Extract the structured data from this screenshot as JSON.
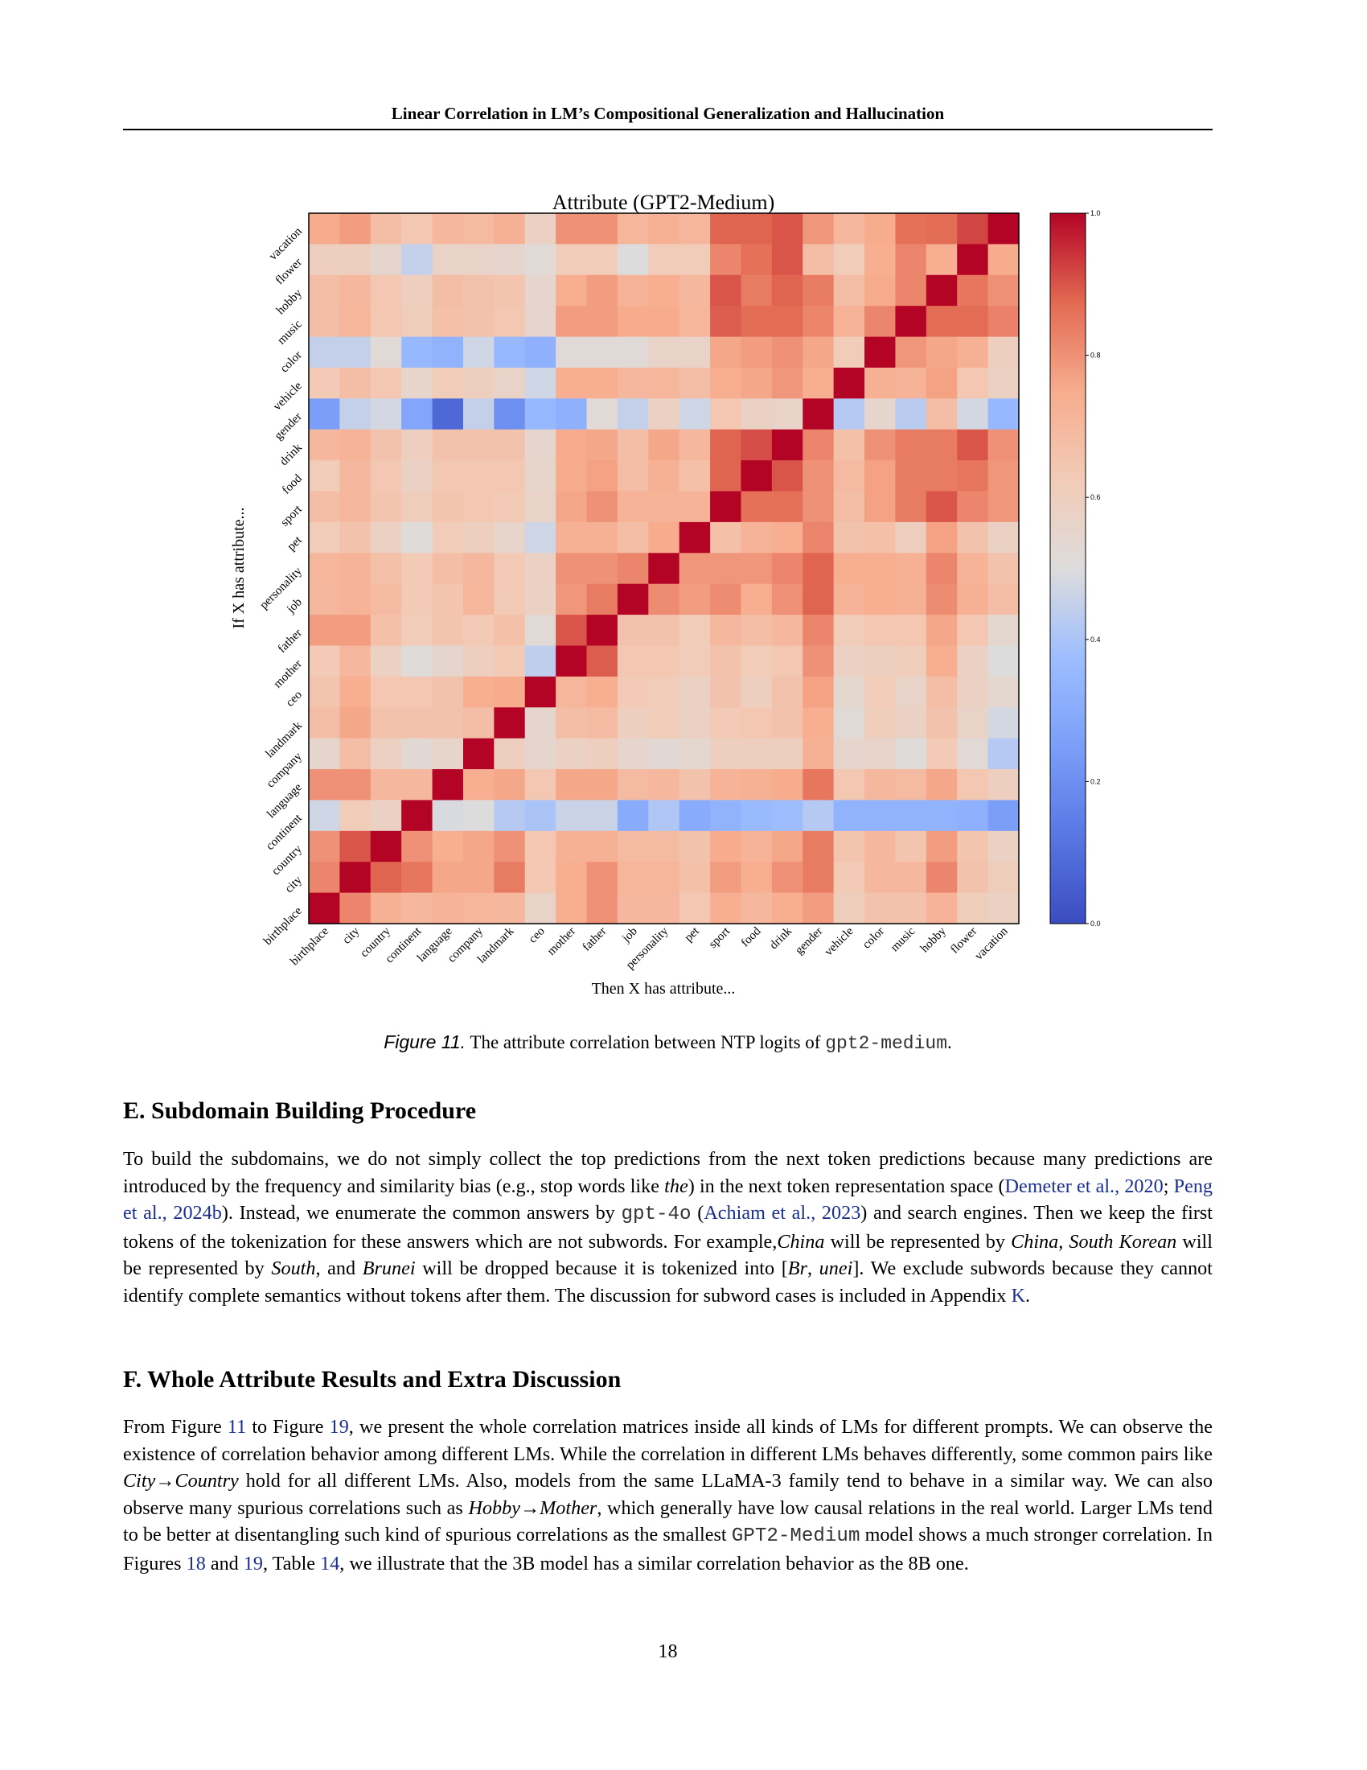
{
  "header": {
    "running_title": "Linear Correlation in LM’s Compositional Generalization and Hallucination"
  },
  "chart_data": {
    "type": "heatmap",
    "title": "Attribute (GPT2-Medium)",
    "xlabel": "Then X has attribute...",
    "ylabel": "If X has attribute...",
    "colormap": "coolwarm",
    "vmin": 0.0,
    "vmax": 1.0,
    "colorbar_ticks": [
      "0.0",
      "0.2",
      "0.4",
      "0.6",
      "0.8",
      "1.0"
    ],
    "x_labels": [
      "birthplace",
      "city",
      "country",
      "continent",
      "language",
      "company",
      "landmark",
      "ceo",
      "mother",
      "father",
      "job",
      "personality",
      "pet",
      "sport",
      "food",
      "drink",
      "gender",
      "vehicle",
      "color",
      "music",
      "hobby",
      "flower",
      "vacation"
    ],
    "y_labels_top_to_bottom": [
      "vacation",
      "flower",
      "hobby",
      "music",
      "color",
      "vehicle",
      "gender",
      "drink",
      "food",
      "sport",
      "pet",
      "personality",
      "job",
      "father",
      "mother",
      "ceo",
      "landmark",
      "company",
      "language",
      "continent",
      "country",
      "city",
      "birthplace"
    ],
    "matrix_top_to_bottom": [
      [
        0.75,
        0.78,
        0.68,
        0.64,
        0.7,
        0.69,
        0.73,
        0.58,
        0.8,
        0.8,
        0.71,
        0.73,
        0.71,
        0.88,
        0.88,
        0.9,
        0.79,
        0.7,
        0.75,
        0.86,
        0.87,
        0.92,
        1.0
      ],
      [
        0.6,
        0.6,
        0.55,
        0.45,
        0.57,
        0.57,
        0.55,
        0.52,
        0.62,
        0.62,
        0.5,
        0.62,
        0.62,
        0.82,
        0.86,
        0.9,
        0.68,
        0.62,
        0.74,
        0.82,
        0.74,
        1.0,
        0.75
      ],
      [
        0.68,
        0.7,
        0.64,
        0.6,
        0.68,
        0.66,
        0.65,
        0.55,
        0.74,
        0.78,
        0.72,
        0.74,
        0.7,
        0.9,
        0.84,
        0.88,
        0.84,
        0.68,
        0.75,
        0.82,
        1.0,
        0.85,
        0.8
      ],
      [
        0.68,
        0.71,
        0.64,
        0.61,
        0.67,
        0.66,
        0.64,
        0.55,
        0.78,
        0.78,
        0.75,
        0.75,
        0.71,
        0.89,
        0.87,
        0.87,
        0.82,
        0.72,
        0.82,
        1.0,
        0.87,
        0.87,
        0.83
      ],
      [
        0.45,
        0.45,
        0.52,
        0.35,
        0.33,
        0.47,
        0.35,
        0.32,
        0.52,
        0.52,
        0.52,
        0.57,
        0.57,
        0.76,
        0.78,
        0.8,
        0.76,
        0.62,
        1.0,
        0.79,
        0.76,
        0.73,
        0.6
      ],
      [
        0.63,
        0.68,
        0.64,
        0.56,
        0.62,
        0.6,
        0.57,
        0.47,
        0.74,
        0.74,
        0.7,
        0.71,
        0.68,
        0.74,
        0.76,
        0.79,
        0.74,
        1.0,
        0.73,
        0.72,
        0.77,
        0.64,
        0.58
      ],
      [
        0.25,
        0.45,
        0.48,
        0.28,
        0.08,
        0.45,
        0.2,
        0.35,
        0.32,
        0.52,
        0.45,
        0.58,
        0.47,
        0.64,
        0.58,
        0.57,
        1.0,
        0.42,
        0.55,
        0.43,
        0.68,
        0.48,
        0.35
      ],
      [
        0.7,
        0.72,
        0.66,
        0.6,
        0.66,
        0.66,
        0.66,
        0.55,
        0.75,
        0.76,
        0.68,
        0.76,
        0.7,
        0.88,
        0.91,
        1.0,
        0.82,
        0.67,
        0.8,
        0.84,
        0.84,
        0.9,
        0.8
      ],
      [
        0.62,
        0.7,
        0.64,
        0.58,
        0.64,
        0.64,
        0.64,
        0.56,
        0.75,
        0.77,
        0.68,
        0.73,
        0.67,
        0.88,
        1.0,
        0.9,
        0.8,
        0.69,
        0.77,
        0.84,
        0.84,
        0.85,
        0.79
      ],
      [
        0.68,
        0.7,
        0.65,
        0.61,
        0.65,
        0.64,
        0.63,
        0.57,
        0.76,
        0.8,
        0.72,
        0.72,
        0.72,
        1.0,
        0.86,
        0.86,
        0.8,
        0.68,
        0.77,
        0.84,
        0.9,
        0.82,
        0.79
      ],
      [
        0.62,
        0.66,
        0.59,
        0.51,
        0.62,
        0.6,
        0.56,
        0.47,
        0.73,
        0.73,
        0.68,
        0.75,
        1.0,
        0.67,
        0.72,
        0.74,
        0.82,
        0.66,
        0.67,
        0.6,
        0.77,
        0.66,
        0.58
      ],
      [
        0.71,
        0.72,
        0.67,
        0.63,
        0.68,
        0.7,
        0.63,
        0.58,
        0.8,
        0.8,
        0.82,
        1.0,
        0.79,
        0.79,
        0.79,
        0.82,
        0.88,
        0.74,
        0.74,
        0.73,
        0.82,
        0.72,
        0.66
      ],
      [
        0.7,
        0.72,
        0.69,
        0.63,
        0.65,
        0.71,
        0.63,
        0.58,
        0.79,
        0.84,
        1.0,
        0.81,
        0.78,
        0.81,
        0.74,
        0.8,
        0.88,
        0.72,
        0.74,
        0.73,
        0.81,
        0.73,
        0.68
      ],
      [
        0.78,
        0.78,
        0.67,
        0.62,
        0.65,
        0.63,
        0.67,
        0.52,
        0.9,
        1.0,
        0.66,
        0.66,
        0.62,
        0.7,
        0.68,
        0.7,
        0.82,
        0.62,
        0.64,
        0.64,
        0.76,
        0.64,
        0.54
      ],
      [
        0.63,
        0.7,
        0.59,
        0.51,
        0.55,
        0.6,
        0.63,
        0.44,
        1.0,
        0.89,
        0.64,
        0.64,
        0.62,
        0.66,
        0.62,
        0.64,
        0.8,
        0.58,
        0.6,
        0.61,
        0.74,
        0.58,
        0.5
      ],
      [
        0.65,
        0.74,
        0.64,
        0.64,
        0.66,
        0.74,
        0.75,
        1.0,
        0.71,
        0.74,
        0.63,
        0.62,
        0.58,
        0.66,
        0.6,
        0.66,
        0.77,
        0.54,
        0.62,
        0.57,
        0.68,
        0.58,
        0.54
      ],
      [
        0.68,
        0.76,
        0.66,
        0.66,
        0.66,
        0.68,
        1.0,
        0.55,
        0.68,
        0.69,
        0.6,
        0.62,
        0.58,
        0.63,
        0.64,
        0.66,
        0.74,
        0.52,
        0.61,
        0.58,
        0.66,
        0.57,
        0.48
      ],
      [
        0.55,
        0.68,
        0.59,
        0.53,
        0.56,
        1.0,
        0.6,
        0.55,
        0.58,
        0.6,
        0.55,
        0.53,
        0.54,
        0.6,
        0.6,
        0.6,
        0.73,
        0.55,
        0.57,
        0.51,
        0.63,
        0.52,
        0.42
      ],
      [
        0.8,
        0.8,
        0.7,
        0.7,
        1.0,
        0.74,
        0.76,
        0.64,
        0.76,
        0.76,
        0.69,
        0.7,
        0.66,
        0.72,
        0.73,
        0.75,
        0.85,
        0.64,
        0.7,
        0.69,
        0.76,
        0.64,
        0.6
      ],
      [
        0.47,
        0.62,
        0.58,
        1.0,
        0.49,
        0.5,
        0.42,
        0.4,
        0.46,
        0.46,
        0.3,
        0.41,
        0.3,
        0.33,
        0.36,
        0.37,
        0.42,
        0.33,
        0.33,
        0.33,
        0.33,
        0.32,
        0.25
      ],
      [
        0.8,
        0.9,
        1.0,
        0.8,
        0.74,
        0.76,
        0.8,
        0.64,
        0.73,
        0.73,
        0.69,
        0.69,
        0.66,
        0.75,
        0.72,
        0.76,
        0.84,
        0.65,
        0.7,
        0.65,
        0.78,
        0.65,
        0.58
      ],
      [
        0.82,
        1.0,
        0.88,
        0.85,
        0.76,
        0.76,
        0.84,
        0.64,
        0.74,
        0.8,
        0.71,
        0.71,
        0.67,
        0.78,
        0.74,
        0.8,
        0.84,
        0.63,
        0.7,
        0.7,
        0.82,
        0.66,
        0.61
      ],
      [
        1.0,
        0.82,
        0.73,
        0.7,
        0.72,
        0.71,
        0.7,
        0.57,
        0.74,
        0.8,
        0.7,
        0.7,
        0.64,
        0.74,
        0.7,
        0.74,
        0.78,
        0.61,
        0.66,
        0.66,
        0.72,
        0.61,
        0.58
      ]
    ]
  },
  "figure": {
    "caption_label": "Figure 11.",
    "caption_text": "The attribute correlation between NTP logits of",
    "caption_code": "gpt2-medium",
    "caption_end": "."
  },
  "section_e": {
    "heading": "E. Subdomain Building Procedure",
    "p1": "To build the subdomains, we do not simply collect the top predictions from the next token predictions because many predictions are introduced by the frequency and similarity bias (e.g., stop words like",
    "the": "the",
    "p2": ") in the next token representation space (",
    "cite1": "Demeter et al., 2020",
    "sep1": "; ",
    "cite2": "Peng et al., 2024b",
    "p3": "). Instead, we enumerate the common answers by",
    "code1": "gpt-4o",
    "p4": "(",
    "cite3": "Achiam et al., 2023",
    "p5": ") and search engines. Then we keep the first tokens of the tokenization for these answers which are not subwords. For example,",
    "china1": "China",
    "p6": " will be represented by ",
    "china2": "China",
    "p7": ", ",
    "south_korean": "South Korean",
    "p8": " will be represented by ",
    "south": "South",
    "p9": ", and ",
    "brunei": "Brunei",
    "p10": " will be dropped because it is tokenized into [",
    "br": "Br",
    "p11": ", ",
    "unei": "unei",
    "p12": "]. We exclude subwords because they cannot identify complete semantics without tokens after them. The discussion for subword cases is included in Appendix ",
    "appendix_ref": "K",
    "p13": "."
  },
  "section_f": {
    "heading": "F. Whole Attribute Results and Extra Discussion",
    "p1": "From Figure ",
    "ref11": "11",
    "p2": " to Figure ",
    "ref19": "19",
    "p3": ", we present the whole correlation matrices inside all kinds of LMs for different prompts. We can observe the existence of correlation behavior among different LMs. While the correlation in different LMs behaves differently, some common pairs like ",
    "city_country": "City→Country",
    "p4": " hold for all different LMs. Also, models from the same LLaMA-3 family tend to behave in a similar way. We can also observe many spurious correlations such as ",
    "hobby_mother": "Hobby→Mother",
    "p5": ", which generally have low causal relations in the real world. Larger LMs tend to be better at disentangling such kind of spurious correlations as the smallest",
    "code_model": "GPT2-Medium",
    "p6": "model shows a much stronger correlation. In Figures ",
    "ref18": "18",
    "p7": " and ",
    "ref19b": "19",
    "p8": ", Table ",
    "ref14": "14",
    "p9": ", we illustrate that the 3B model has a similar correlation behavior as the 8B one."
  },
  "footer": {
    "page_number": "18"
  }
}
